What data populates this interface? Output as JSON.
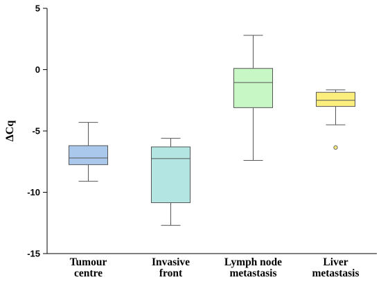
{
  "chart_data": {
    "type": "box",
    "ylabel": "ΔCq",
    "xlabel": "",
    "ylim": [
      -15,
      5
    ],
    "yticks": [
      5,
      0,
      -5,
      -10,
      -15
    ],
    "categories": [
      [
        "Tumour",
        "centre"
      ],
      [
        "Invasive",
        "front"
      ],
      [
        "Lymph node",
        "metastasis"
      ],
      [
        "Liver",
        "metastasis"
      ]
    ],
    "boxes": [
      {
        "whisker_low": -9.1,
        "q1": -7.75,
        "median": -7.2,
        "q3": -6.2,
        "whisker_high": -4.3,
        "outliers": [],
        "color": "#a9c8ec"
      },
      {
        "whisker_low": -12.7,
        "q1": -10.85,
        "median": -7.25,
        "q3": -6.3,
        "whisker_high": -5.6,
        "outliers": [],
        "color": "#b3e6e3"
      },
      {
        "whisker_low": -7.4,
        "q1": -3.1,
        "median": -1.05,
        "q3": 0.1,
        "whisker_high": 2.8,
        "outliers": [],
        "color": "#c6f7c4"
      },
      {
        "whisker_low": -4.5,
        "q1": -3.0,
        "median": -2.5,
        "q3": -1.85,
        "whisker_high": -1.65,
        "outliers": [
          -6.35
        ],
        "color": "#fbee7c"
      }
    ],
    "grid": false,
    "legend": "none"
  }
}
